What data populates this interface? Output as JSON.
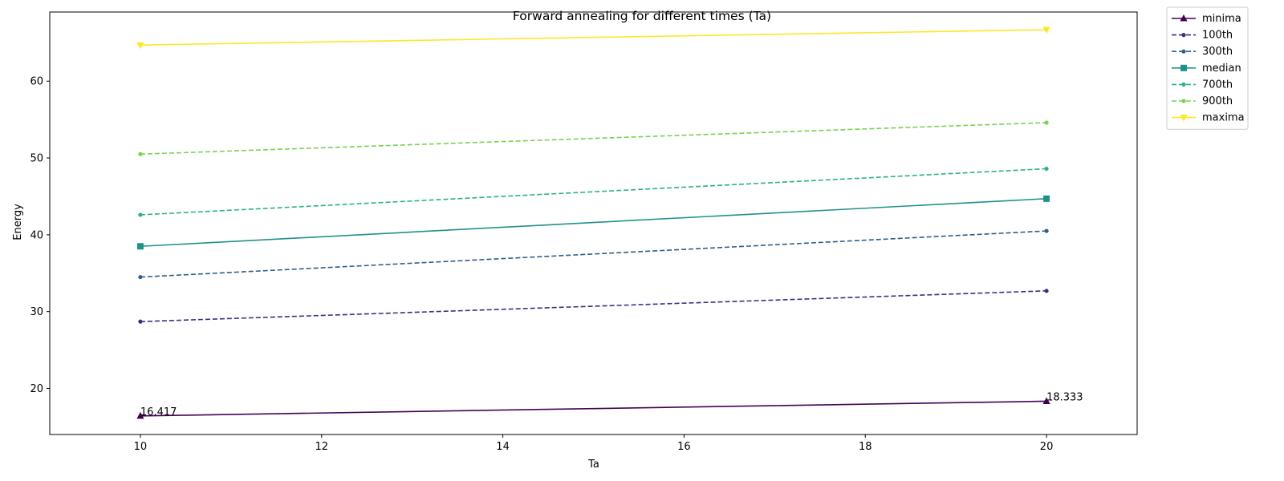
{
  "chart_data": {
    "type": "line",
    "title": "Forward annealing for different times (Ta)",
    "xlabel": "Ta",
    "ylabel": "Energy",
    "x": [
      10,
      20
    ],
    "xlim": [
      9,
      21
    ],
    "ylim": [
      14,
      69
    ],
    "xticks": [
      10,
      12,
      14,
      16,
      18,
      20
    ],
    "yticks": [
      20,
      30,
      40,
      50,
      60
    ],
    "grid": false,
    "legend_position": "outside-top-right",
    "series": [
      {
        "name": "minima",
        "values": [
          16.417,
          18.333
        ],
        "color": "#440154",
        "dash": "solid",
        "marker": "triangle-up"
      },
      {
        "name": "100th",
        "values": [
          28.7,
          32.7
        ],
        "color": "#3b2f80",
        "dash": "dashed",
        "marker": "circle"
      },
      {
        "name": "300th",
        "values": [
          34.5,
          40.5
        ],
        "color": "#2c5f8a",
        "dash": "dashed",
        "marker": "circle"
      },
      {
        "name": "median",
        "values": [
          38.5,
          44.7
        ],
        "color": "#21918c",
        "dash": "solid",
        "marker": "square"
      },
      {
        "name": "700th",
        "values": [
          42.6,
          48.6
        ],
        "color": "#2db37a",
        "dash": "dashed",
        "marker": "circle"
      },
      {
        "name": "900th",
        "values": [
          50.5,
          54.6
        ],
        "color": "#7ad151",
        "dash": "dashed",
        "marker": "circle"
      },
      {
        "name": "maxima",
        "values": [
          64.7,
          66.7
        ],
        "color": "#fde725",
        "dash": "solid",
        "marker": "triangle-down"
      }
    ],
    "annotations": [
      {
        "x": 10,
        "y": 16.417,
        "text": "16.417"
      },
      {
        "x": 20,
        "y": 18.333,
        "text": "18.333"
      }
    ]
  }
}
